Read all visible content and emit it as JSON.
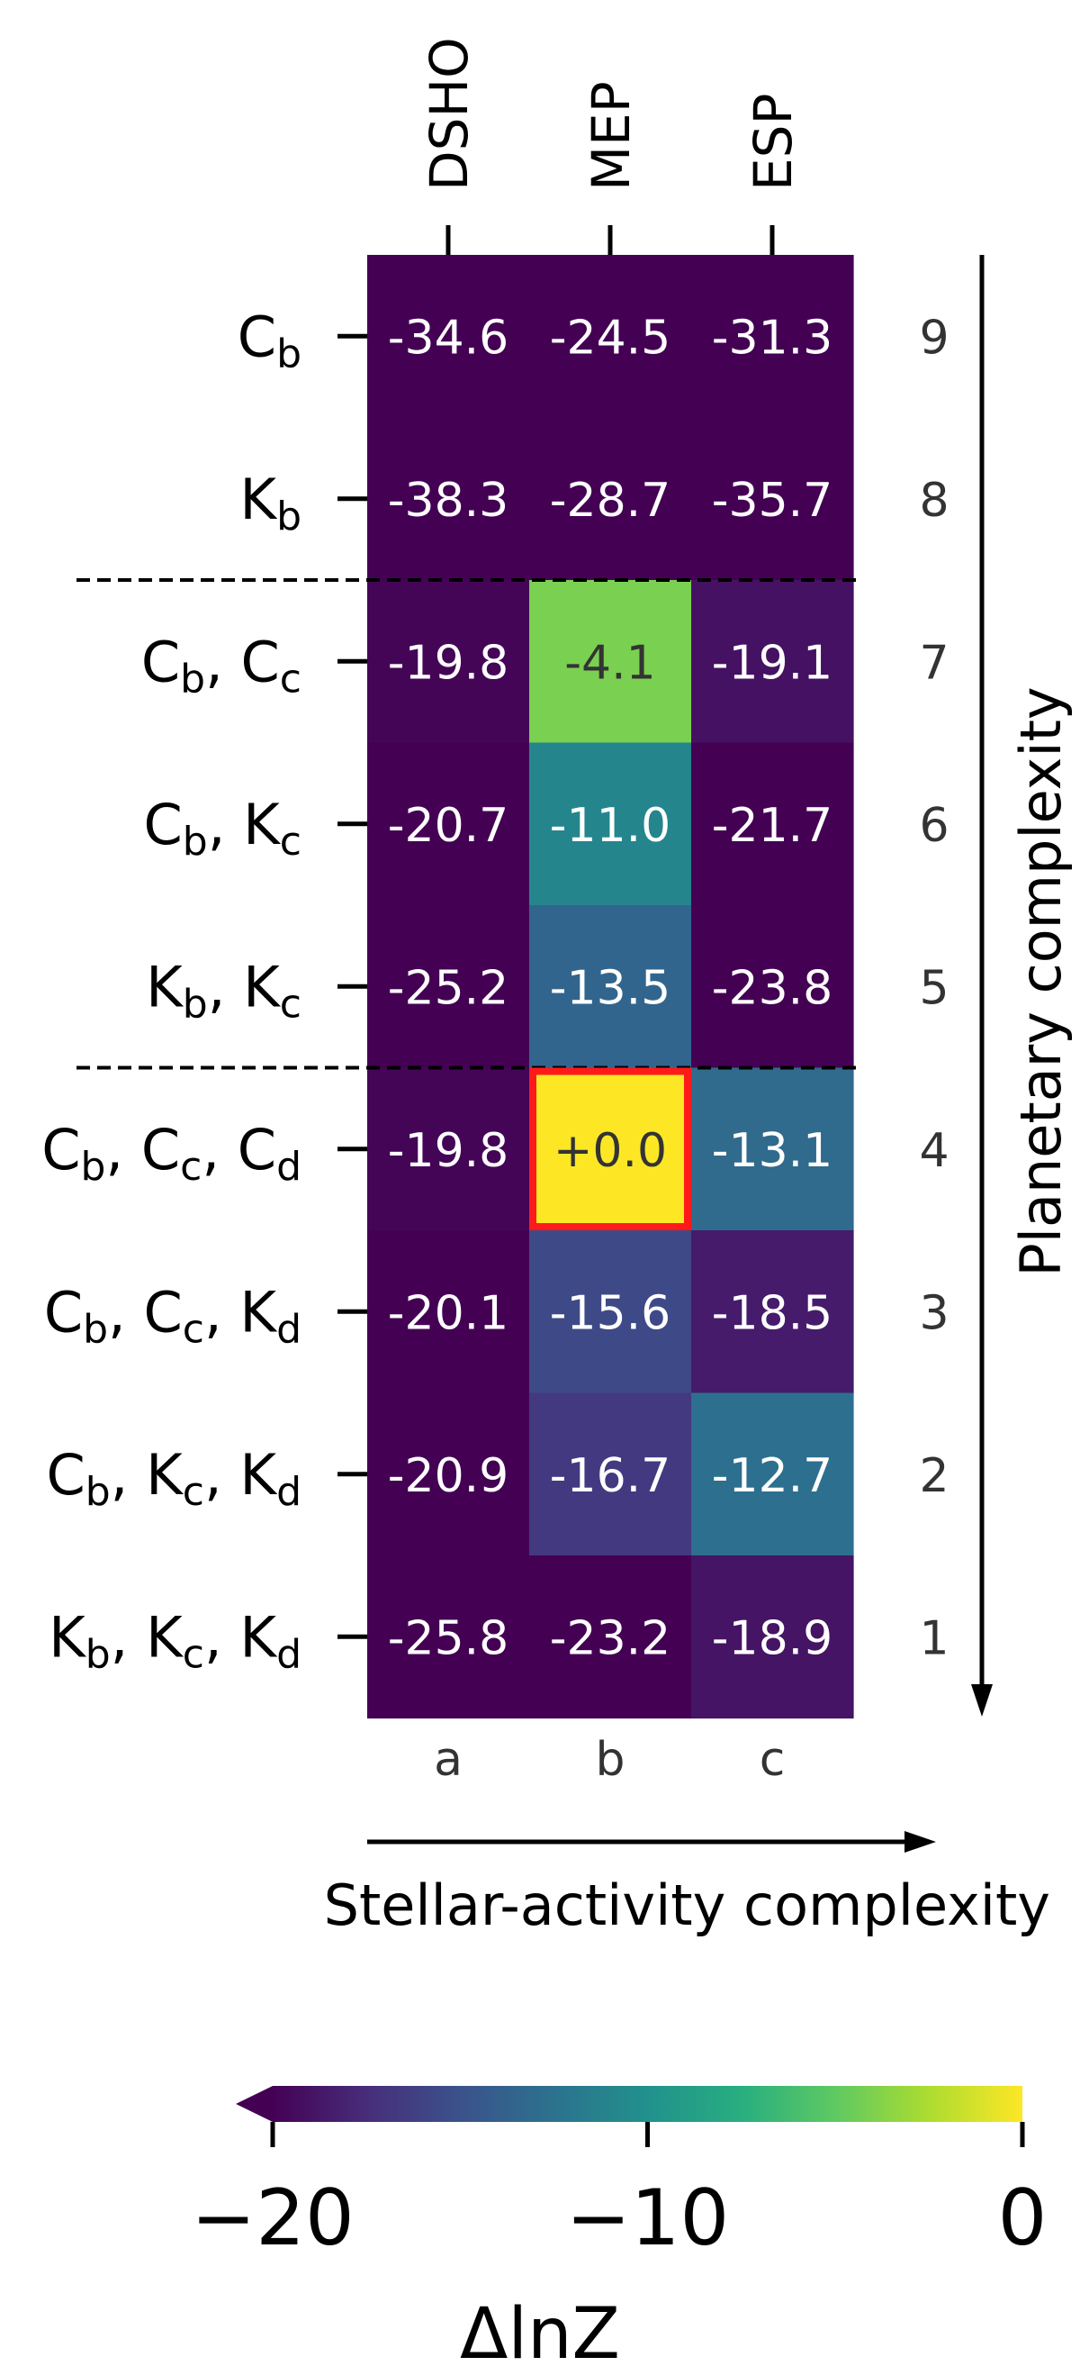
{
  "chart_data": {
    "type": "heatmap",
    "columns": [
      "DSHO",
      "MEP",
      "ESP"
    ],
    "column_letters": [
      "a",
      "b",
      "c"
    ],
    "rows": [
      {
        "label": [
          [
            "C",
            "b"
          ]
        ],
        "index": "9",
        "values": [
          -34.6,
          -24.5,
          -31.3
        ],
        "text": [
          "-34.6",
          "-24.5",
          "-31.3"
        ]
      },
      {
        "label": [
          [
            "K",
            "b"
          ]
        ],
        "index": "8",
        "values": [
          -38.3,
          -28.7,
          -35.7
        ],
        "text": [
          "-38.3",
          "-28.7",
          "-35.7"
        ]
      },
      {
        "label": [
          [
            "C",
            "b"
          ],
          [
            "C",
            "c"
          ]
        ],
        "index": "7",
        "values": [
          -19.8,
          -4.1,
          -19.1
        ],
        "text": [
          "-19.8",
          "-4.1",
          "-19.1"
        ]
      },
      {
        "label": [
          [
            "C",
            "b"
          ],
          [
            "K",
            "c"
          ]
        ],
        "index": "6",
        "values": [
          -20.7,
          -11.0,
          -21.7
        ],
        "text": [
          "-20.7",
          "-11.0",
          "-21.7"
        ]
      },
      {
        "label": [
          [
            "K",
            "b"
          ],
          [
            "K",
            "c"
          ]
        ],
        "index": "5",
        "values": [
          -25.2,
          -13.5,
          -23.8
        ],
        "text": [
          "-25.2",
          "-13.5",
          "-23.8"
        ]
      },
      {
        "label": [
          [
            "C",
            "b"
          ],
          [
            "C",
            "c"
          ],
          [
            "C",
            "d"
          ]
        ],
        "index": "4",
        "values": [
          -19.8,
          0.0,
          -13.1
        ],
        "text": [
          "-19.8",
          "+0.0",
          "-13.1"
        ]
      },
      {
        "label": [
          [
            "C",
            "b"
          ],
          [
            "C",
            "c"
          ],
          [
            "K",
            "d"
          ]
        ],
        "index": "3",
        "values": [
          -20.1,
          -15.6,
          -18.5
        ],
        "text": [
          "-20.1",
          "-15.6",
          "-18.5"
        ]
      },
      {
        "label": [
          [
            "C",
            "b"
          ],
          [
            "K",
            "c"
          ],
          [
            "K",
            "d"
          ]
        ],
        "index": "2",
        "values": [
          -20.9,
          -16.7,
          -12.7
        ],
        "text": [
          "-20.9",
          "-16.7",
          "-12.7"
        ]
      },
      {
        "label": [
          [
            "K",
            "b"
          ],
          [
            "K",
            "c"
          ],
          [
            "K",
            "d"
          ]
        ],
        "index": "1",
        "values": [
          -25.8,
          -23.2,
          -18.9
        ],
        "text": [
          "-25.8",
          "-23.2",
          "-18.9"
        ]
      }
    ],
    "highlight_cell": {
      "row_index": "4",
      "column": "MEP",
      "outline_color": "#ff1a1a"
    },
    "group_separators_after_rows": [
      "8",
      "5"
    ],
    "xlabel": "Stellar-activity complexity",
    "ylabel": "Planetary complexity",
    "colorbar": {
      "label": "ΔlnZ",
      "range": [
        -20,
        0
      ],
      "ticks": [
        -20,
        -10,
        0
      ],
      "tick_labels": [
        "−20",
        "−10",
        "0"
      ],
      "extend": "min",
      "colormap": "viridis"
    }
  }
}
